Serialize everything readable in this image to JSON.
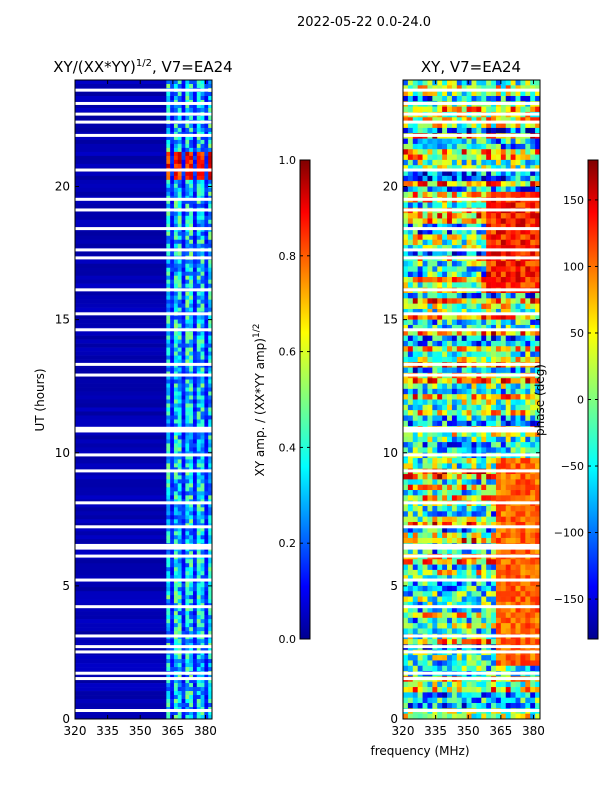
{
  "figure": {
    "suptitle": "2022-05-22 0.0-24.0",
    "shared_xlabel": "frequency (MHz)"
  },
  "colors": {
    "low": "#00008f",
    "high": "#800000",
    "stripe": "#ffffff",
    "axis": "#000000"
  },
  "chart_data": [
    {
      "type": "heatmap",
      "title": "XY/(XX*YY)^1/2, V7=EA24",
      "title_main": "XY/(XX*YY)",
      "title_sup": "1/2",
      "title_tail": ", V7=EA24",
      "xlabel": "",
      "ylabel": "UT (hours)",
      "xlim": [
        320,
        383
      ],
      "ylim": [
        0,
        24
      ],
      "x_ticks": [
        320,
        335,
        350,
        365,
        380
      ],
      "y_ticks": [
        0,
        5,
        10,
        15,
        20
      ],
      "colorbar": {
        "label": "XY amp. / (XX*YY amp)^1/2",
        "label_main": "XY amp. / (XX*YY amp)",
        "label_sup": "1/2",
        "range": [
          0.0,
          1.0
        ],
        "ticks": [
          "0.0",
          "0.2",
          "0.4",
          "0.6",
          "0.8",
          "1.0"
        ],
        "tick_values": [
          0.0,
          0.2,
          0.4,
          0.6,
          0.8,
          1.0
        ]
      },
      "description": "Mostly low amplitude (~0.05) below 362 MHz; elevated (~0.4-0.6) in channels 362-383 MHz; saturated (~0.9-1.0) near 20.3-21.2 h in 363-381 MHz",
      "regions": [
        {
          "x0": 320,
          "x1": 362,
          "t0": 0,
          "t1": 24,
          "value": 0.05
        },
        {
          "x0": 362,
          "x1": 383,
          "t0": 0,
          "t1": 24,
          "value": 0.35
        },
        {
          "x0": 363,
          "x1": 381,
          "t0": 20.2,
          "t1": 21.3,
          "value": 0.95
        }
      ],
      "flagged_rows": [
        0.3,
        1.5,
        1.7,
        2.5,
        2.7,
        3.1,
        4.2,
        5.2,
        6.1,
        6.4,
        6.5,
        7.2,
        8.1,
        9.3,
        9.9,
        10.8,
        10.9,
        12.9,
        13.3,
        14.6,
        15.2,
        16.1,
        17.3,
        17.6,
        18.4,
        19.1,
        19.5,
        20.6,
        21.9,
        22.4,
        22.7,
        23.1,
        23.6
      ]
    },
    {
      "type": "heatmap",
      "title": "XY, V7=EA24",
      "xlabel": "frequency (MHz)",
      "ylabel": "",
      "xlim": [
        320,
        383
      ],
      "ylim": [
        0,
        24
      ],
      "x_ticks": [
        320,
        335,
        350,
        365,
        380
      ],
      "y_ticks": [
        0,
        5,
        10,
        15,
        20
      ],
      "colorbar": {
        "label": "phase (deg)",
        "range": [
          -180,
          180
        ],
        "ticks": [
          "−150",
          "−100",
          "−50",
          "0",
          "50",
          "100",
          "150"
        ],
        "tick_values": [
          -150,
          -100,
          -50,
          0,
          50,
          100,
          150
        ]
      },
      "description": "Noisy phase across full band with patchy structure; many flagged (white) time rows",
      "flagged_rows": [
        0.3,
        1.5,
        1.7,
        2.5,
        2.7,
        3.1,
        4.2,
        5.2,
        6.1,
        6.4,
        6.5,
        7.2,
        8.1,
        9.3,
        9.9,
        10.8,
        10.9,
        12.9,
        13.3,
        14.6,
        15.2,
        16.1,
        17.3,
        17.6,
        18.4,
        19.1,
        19.5,
        20.6,
        21.9,
        22.4,
        22.7,
        23.1,
        23.6
      ]
    }
  ]
}
